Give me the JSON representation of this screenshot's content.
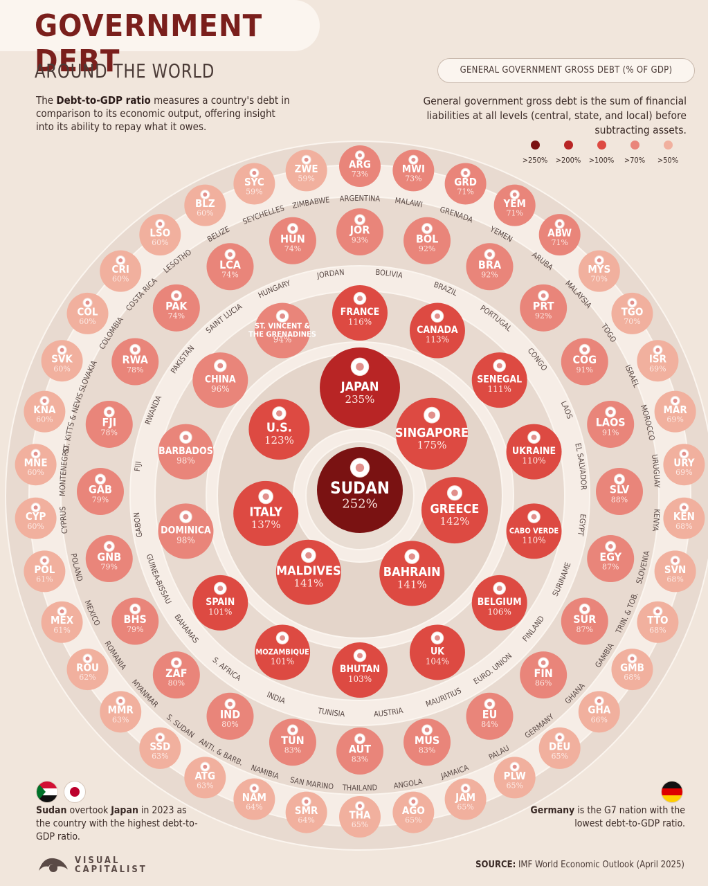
{
  "header": {
    "title": "GOVERNMENT DEBT",
    "subtitle": "AROUND THE WORLD"
  },
  "intro": {
    "bold": "Debt-to-GDP ratio",
    "prefix": "The ",
    "rest": " measures a country's debt in comparison to its economic output, offering insight into its ability to repay what it owes."
  },
  "legend": {
    "title": "GENERAL GOVERNMENT GROSS DEBT (% OF GDP)",
    "description": "General government gross debt is the sum of financial liabilities at all levels (central, state, and local) before subtracting assets.",
    "items": [
      {
        "label": ">250%",
        "color": "#7a1212"
      },
      {
        "label": ">200%",
        "color": "#b82525"
      },
      {
        "label": ">100%",
        "color": "#dd4a42"
      },
      {
        "label": ">70%",
        "color": "#e9857a"
      },
      {
        "label": ">50%",
        "color": "#f1b09e"
      }
    ]
  },
  "notes": {
    "left_bold1": "Sudan",
    "left_mid": " overtook ",
    "left_bold2": "Japan",
    "left_rest": " in 2023 as the country with the highest debt-to-GDP ratio.",
    "right_bold": "Germany",
    "right_rest": " is the G7 nation with the lowest debt-to-GDP ratio."
  },
  "source": {
    "label": "SOURCE:",
    "text": " IMF World Economic Outlook (April 2025)"
  },
  "brand": {
    "line1": "VISUAL",
    "line2": "CAPITALIST"
  },
  "chart_data": {
    "type": "bubble-rings",
    "unit": "% of GDP",
    "center": [
      {
        "code": "SUDAN",
        "value": 252
      }
    ],
    "ring1": [
      {
        "code": "JAPAN",
        "value": 235
      },
      {
        "code": "SINGAPORE",
        "value": 175
      },
      {
        "code": "GREECE",
        "value": 142
      },
      {
        "code": "BAHRAIN",
        "value": 141
      },
      {
        "code": "MALDIVES",
        "value": 141
      },
      {
        "code": "ITALY",
        "value": 137
      },
      {
        "code": "U.S.",
        "value": 123
      }
    ],
    "ring2": [
      {
        "code": "FRANCE",
        "value": 116
      },
      {
        "code": "CANADA",
        "value": 113
      },
      {
        "code": "SENEGAL",
        "value": 111
      },
      {
        "code": "UKRAINE",
        "value": 110
      },
      {
        "code": "CABO VERDE",
        "value": 110
      },
      {
        "code": "BELGIUM",
        "value": 106
      },
      {
        "code": "UK",
        "value": 104
      },
      {
        "code": "BHUTAN",
        "value": 103
      },
      {
        "code": "MOZAMBIQUE",
        "value": 101
      },
      {
        "code": "SPAIN",
        "value": 101
      },
      {
        "code": "DOMINICA",
        "value": 98
      },
      {
        "code": "BARBADOS",
        "value": 98
      },
      {
        "code": "CHINA",
        "value": 96
      },
      {
        "code": "ST. VINCENT & THE GRENADINES",
        "value": 94
      }
    ],
    "ring3": [
      {
        "code": "JOR",
        "name": "JORDAN",
        "value": 93
      },
      {
        "code": "BOL",
        "name": "BOLIVIA",
        "value": 92
      },
      {
        "code": "BRA",
        "name": "BRAZIL",
        "value": 92
      },
      {
        "code": "PRT",
        "name": "PORTUGAL",
        "value": 92
      },
      {
        "code": "COG",
        "name": "CONGO",
        "value": 91
      },
      {
        "code": "LAOS",
        "name": "LAOS",
        "value": 91
      },
      {
        "code": "SLV",
        "name": "EL SALVADOR",
        "value": 88
      },
      {
        "code": "EGY",
        "name": "EGYPT",
        "value": 87
      },
      {
        "code": "SUR",
        "name": "SURINAME",
        "value": 87
      },
      {
        "code": "FIN",
        "name": "FINLAND",
        "value": 86
      },
      {
        "code": "EU",
        "name": "EURO. UNION",
        "value": 84
      },
      {
        "code": "MUS",
        "name": "MAURITIUS",
        "value": 83
      },
      {
        "code": "AUT",
        "name": "AUSTRIA",
        "value": 83
      },
      {
        "code": "TUN",
        "name": "TUNISIA",
        "value": 83
      },
      {
        "code": "IND",
        "name": "INDIA",
        "value": 80
      },
      {
        "code": "ZAF",
        "name": "S. AFRICA",
        "value": 80
      },
      {
        "code": "BHS",
        "name": "BAHAMAS",
        "value": 79
      },
      {
        "code": "GNB",
        "name": "GUINEA-BISSAU",
        "value": 79
      },
      {
        "code": "GAB",
        "name": "GABON",
        "value": 79
      },
      {
        "code": "FJI",
        "name": "FIJI",
        "value": 78
      },
      {
        "code": "RWA",
        "name": "RWANDA",
        "value": 78
      },
      {
        "code": "PAK",
        "name": "PAKISTAN",
        "value": 74
      },
      {
        "code": "LCA",
        "name": "SAINT LUCIA",
        "value": 74
      },
      {
        "code": "HUN",
        "name": "HUNGARY",
        "value": 74
      }
    ],
    "ring4": [
      {
        "code": "ARG",
        "name": "ARGENTINA",
        "value": 73
      },
      {
        "code": "MWI",
        "name": "MALAWI",
        "value": 73
      },
      {
        "code": "GRD",
        "name": "GRENADA",
        "value": 71
      },
      {
        "code": "YEM",
        "name": "YEMEN",
        "value": 71
      },
      {
        "code": "ABW",
        "name": "ARUBA",
        "value": 71
      },
      {
        "code": "MYS",
        "name": "MALAYSIA",
        "value": 70
      },
      {
        "code": "TGO",
        "name": "TOGO",
        "value": 70
      },
      {
        "code": "ISR",
        "name": "ISRAEL",
        "value": 69
      },
      {
        "code": "MAR",
        "name": "MOROCCO",
        "value": 69
      },
      {
        "code": "URY",
        "name": "URUGUAY",
        "value": 69
      },
      {
        "code": "KEN",
        "name": "KENYA",
        "value": 68
      },
      {
        "code": "SVN",
        "name": "SLOVENIA",
        "value": 68
      },
      {
        "code": "TTO",
        "name": "TRIN. & TOB.",
        "value": 68
      },
      {
        "code": "GMB",
        "name": "GAMBIA",
        "value": 68
      },
      {
        "code": "GHA",
        "name": "GHANA",
        "value": 66
      },
      {
        "code": "DEU",
        "name": "GERMANY",
        "value": 65
      },
      {
        "code": "PLW",
        "name": "PALAU",
        "value": 65
      },
      {
        "code": "JAM",
        "name": "JAMAICA",
        "value": 65
      },
      {
        "code": "AGO",
        "name": "ANGOLA",
        "value": 65
      },
      {
        "code": "THA",
        "name": "THAILAND",
        "value": 65
      },
      {
        "code": "SMR",
        "name": "SAN MARINO",
        "value": 64
      },
      {
        "code": "NAM",
        "name": "NAMIBIA",
        "value": 64
      },
      {
        "code": "ATG",
        "name": "ANTI. & BARB.",
        "value": 63
      },
      {
        "code": "SSD",
        "name": "S. SUDAN",
        "value": 63
      },
      {
        "code": "MMR",
        "name": "MYANMAR",
        "value": 63
      },
      {
        "code": "ROU",
        "name": "ROMANIA",
        "value": 62
      },
      {
        "code": "MEX",
        "name": "MEXICO",
        "value": 61
      },
      {
        "code": "POL",
        "name": "POLAND",
        "value": 61
      },
      {
        "code": "CYP",
        "name": "CYPRUS",
        "value": 60
      },
      {
        "code": "MNE",
        "name": "MONTENEGRO",
        "value": 60
      },
      {
        "code": "KNA",
        "name": "ST. KITTS & NEVIS",
        "value": 60
      },
      {
        "code": "SVK",
        "name": "SLOVAKIA",
        "value": 60
      },
      {
        "code": "COL",
        "name": "COLOMBIA",
        "value": 60
      },
      {
        "code": "CRI",
        "name": "COSTA RICA",
        "value": 60
      },
      {
        "code": "LSO",
        "name": "LESOTHO",
        "value": 60
      },
      {
        "code": "BLZ",
        "name": "BELIZE",
        "value": 60
      },
      {
        "code": "SYC",
        "name": "SEYCHELLES",
        "value": 59
      },
      {
        "code": "ZWE",
        "name": "ZIMBABWE",
        "value": 59
      }
    ]
  }
}
